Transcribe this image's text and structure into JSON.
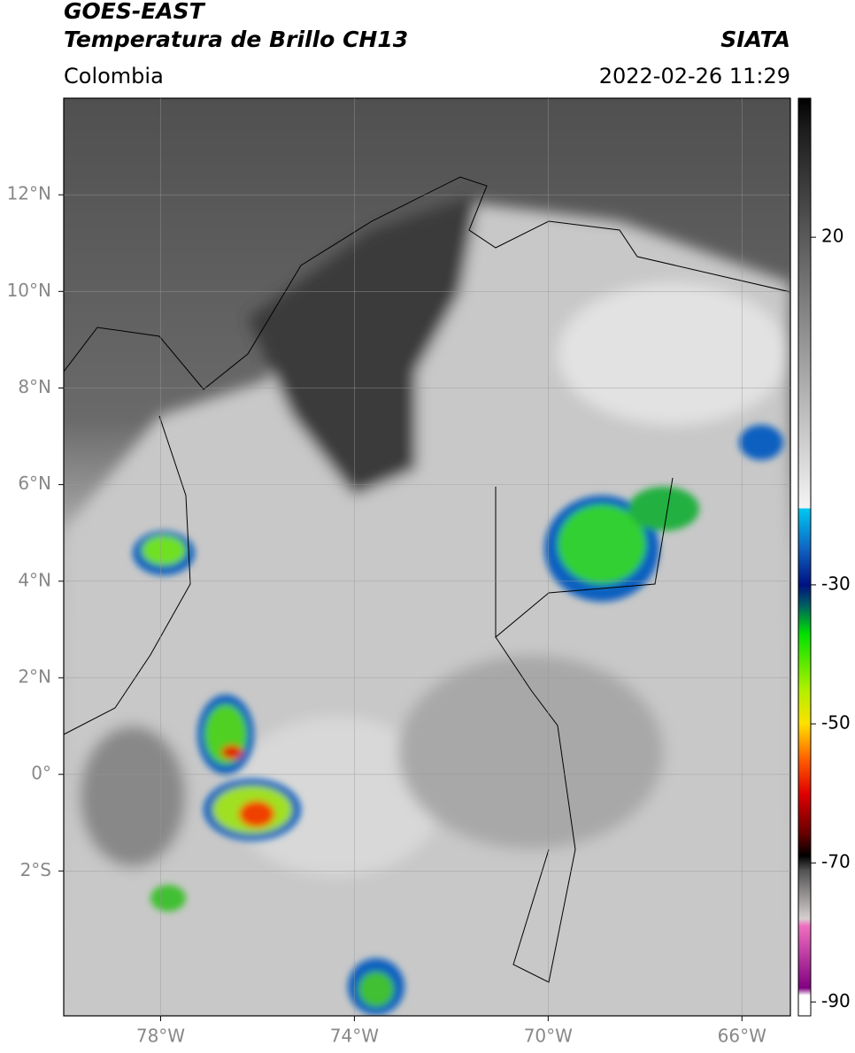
{
  "chart_data": {
    "type": "map",
    "title": "GOES-EAST",
    "subtitle": "Temperatura de Brillo CH13",
    "region": "Colombia",
    "source": "SIATA",
    "datetime": "2022-02-26 11:29",
    "xlim": [
      -80,
      -65
    ],
    "ylim": [
      -5,
      14
    ],
    "xticks": [
      {
        "value": -78,
        "label": "78°W"
      },
      {
        "value": -74,
        "label": "74°W"
      },
      {
        "value": -70,
        "label": "70°W"
      },
      {
        "value": -66,
        "label": "66°W"
      }
    ],
    "yticks": [
      {
        "value": -2,
        "label": "2°S"
      },
      {
        "value": 0,
        "label": "0°"
      },
      {
        "value": 2,
        "label": "2°N"
      },
      {
        "value": 4,
        "label": "4°N"
      },
      {
        "value": 6,
        "label": "6°N"
      },
      {
        "value": 8,
        "label": "8°N"
      },
      {
        "value": 10,
        "label": "10°N"
      },
      {
        "value": 12,
        "label": "12°N"
      }
    ],
    "grid": true,
    "clim": [
      -92,
      40
    ],
    "cticks": [
      20,
      -30,
      -50,
      -70,
      -90
    ],
    "colormap": [
      {
        "value": 40,
        "color": "#000000"
      },
      {
        "value": 36,
        "color": "#1a1a1a"
      },
      {
        "value": -19,
        "color": "#f4f4f4"
      },
      {
        "value": -19,
        "color": "#00c8f0"
      },
      {
        "value": -25,
        "color": "#1060c0"
      },
      {
        "value": -30,
        "color": "#001080"
      },
      {
        "value": -33,
        "color": "#006060"
      },
      {
        "value": -37,
        "color": "#00e000"
      },
      {
        "value": -45,
        "color": "#b0f000"
      },
      {
        "value": -50,
        "color": "#ffe000"
      },
      {
        "value": -55,
        "color": "#ff6000"
      },
      {
        "value": -60,
        "color": "#e00000"
      },
      {
        "value": -66,
        "color": "#600000"
      },
      {
        "value": -69,
        "color": "#000000"
      },
      {
        "value": -71,
        "color": "#505050"
      },
      {
        "value": -78,
        "color": "#d8d0d0"
      },
      {
        "value": -79,
        "color": "#f070c0"
      },
      {
        "value": -88,
        "color": "#800080"
      },
      {
        "value": -89,
        "color": "#ffffff"
      },
      {
        "value": -92,
        "color": "#ffffff"
      }
    ]
  }
}
